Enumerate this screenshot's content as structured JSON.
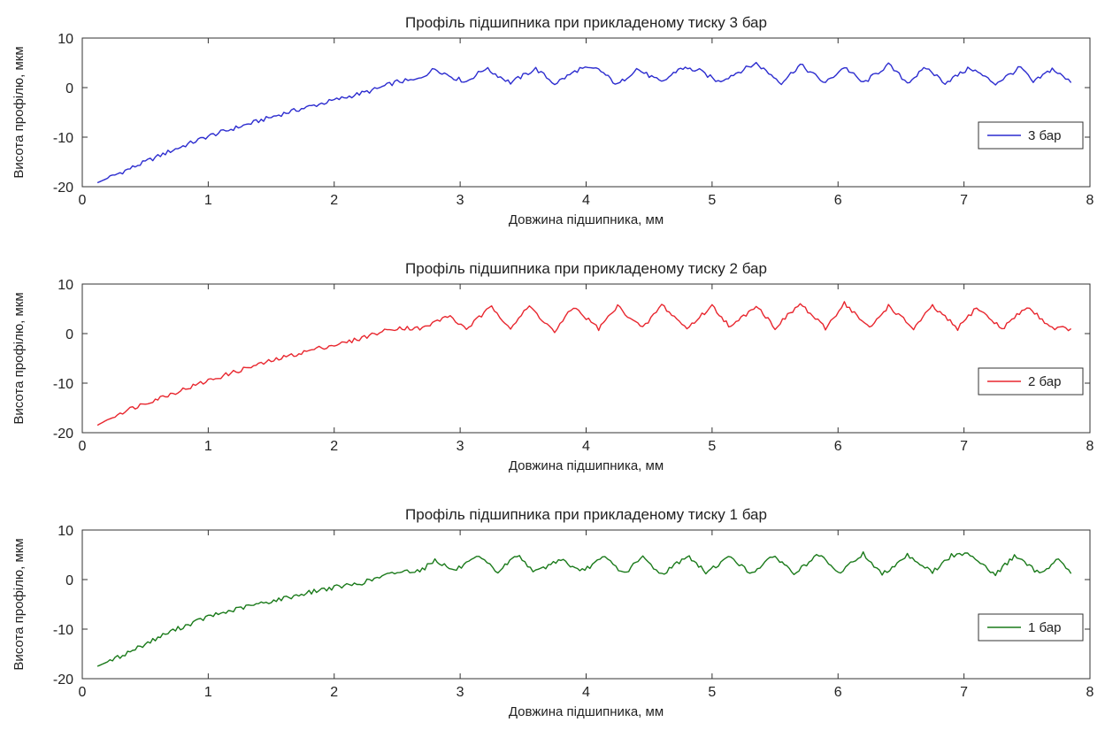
{
  "chart_data": [
    {
      "type": "line",
      "title": "Профіль підшипника при прикладеному тиску 3 бар",
      "xlabel": "Довжина підшипника, мм",
      "ylabel": "Висота профілю, мкм",
      "xlim": [
        0,
        8
      ],
      "ylim": [
        -20,
        10
      ],
      "xticks": [
        "0",
        "1",
        "2",
        "3",
        "4",
        "5",
        "6",
        "7",
        "8"
      ],
      "yticks": [
        "10",
        "0",
        "-10",
        "-20"
      ],
      "grid": false,
      "legend_position": "right",
      "series": [
        {
          "name": "3 бар",
          "color": "#2c2ccf",
          "x": [
            0.12,
            0.3,
            0.5,
            0.7,
            1.0,
            1.3,
            1.6,
            1.9,
            2.1,
            2.3,
            2.5,
            2.65,
            2.8,
            2.95,
            3.05,
            3.2,
            3.4,
            3.6,
            3.75,
            3.95,
            4.1,
            4.25,
            4.4,
            4.6,
            4.75,
            4.9,
            5.05,
            5.35,
            5.55,
            5.7,
            5.9,
            6.05,
            6.2,
            6.4,
            6.55,
            6.7,
            6.85,
            7.05,
            7.25,
            7.45,
            7.55,
            7.7,
            7.85
          ],
          "y": [
            -19.2,
            -17.2,
            -15.0,
            -12.8,
            -9.8,
            -7.5,
            -5.2,
            -3.2,
            -1.9,
            -0.6,
            1.2,
            1.5,
            3.8,
            2.0,
            1.2,
            3.9,
            1.0,
            3.8,
            0.8,
            3.8,
            3.7,
            0.5,
            3.8,
            1.0,
            4.0,
            3.4,
            1.2,
            4.9,
            1.0,
            4.6,
            0.9,
            4.2,
            0.9,
            4.6,
            1.0,
            4.0,
            1.0,
            4.0,
            0.8,
            4.1,
            1.0,
            3.8,
            1.0
          ]
        }
      ]
    },
    {
      "type": "line",
      "title": "Профіль підшипника при прикладеному тиску 2 бар",
      "xlabel": "Довжина підшипника, мм",
      "ylabel": "Висота профілю, мкм",
      "xlim": [
        0,
        8
      ],
      "ylim": [
        -20,
        10
      ],
      "xticks": [
        "0",
        "1",
        "2",
        "3",
        "4",
        "5",
        "6",
        "7",
        "8"
      ],
      "yticks": [
        "10",
        "0",
        "-10",
        "-20"
      ],
      "grid": false,
      "legend_position": "right",
      "series": [
        {
          "name": "2 бар",
          "color": "#e8262e",
          "x": [
            0.12,
            0.3,
            0.5,
            0.7,
            1.0,
            1.3,
            1.6,
            1.9,
            2.1,
            2.3,
            2.5,
            2.7,
            2.9,
            3.05,
            3.25,
            3.4,
            3.55,
            3.75,
            3.9,
            4.1,
            4.25,
            4.45,
            4.6,
            4.8,
            5.0,
            5.15,
            5.35,
            5.5,
            5.7,
            5.9,
            6.05,
            6.25,
            6.4,
            6.6,
            6.75,
            6.95,
            7.1,
            7.3,
            7.5,
            7.7,
            7.85
          ],
          "y": [
            -18.5,
            -16.0,
            -14.0,
            -12.2,
            -9.5,
            -7.0,
            -4.8,
            -2.8,
            -1.8,
            -0.2,
            1.2,
            1.0,
            3.6,
            1.0,
            5.4,
            1.2,
            5.5,
            0.3,
            5.4,
            1.0,
            5.5,
            1.0,
            5.8,
            1.0,
            5.6,
            1.2,
            5.8,
            1.2,
            6.0,
            1.0,
            6.2,
            1.0,
            5.6,
            1.0,
            5.5,
            1.0,
            5.3,
            1.0,
            5.4,
            1.2,
            1.0
          ]
        }
      ]
    },
    {
      "type": "line",
      "title": "Профіль підшипника при прикладеному тиску 1 бар",
      "xlabel": "Довжина підшипника, мм",
      "ylabel": "Висота профілю, мкм",
      "xlim": [
        0,
        8
      ],
      "ylim": [
        -20,
        10
      ],
      "xticks": [
        "0",
        "1",
        "2",
        "3",
        "4",
        "5",
        "6",
        "7",
        "8"
      ],
      "yticks": [
        "10",
        "0",
        "-10",
        "-20"
      ],
      "grid": false,
      "legend_position": "right",
      "series": [
        {
          "name": "1 бар",
          "color": "#1a7a1a",
          "x": [
            0.12,
            0.3,
            0.5,
            0.7,
            1.0,
            1.3,
            1.6,
            1.9,
            2.2,
            2.5,
            2.7,
            2.8,
            2.95,
            3.15,
            3.3,
            3.45,
            3.6,
            3.8,
            3.95,
            4.15,
            4.3,
            4.45,
            4.6,
            4.8,
            4.95,
            5.15,
            5.3,
            5.5,
            5.65,
            5.85,
            6.0,
            6.2,
            6.35,
            6.55,
            6.75,
            6.9,
            7.05,
            7.25,
            7.4,
            7.6,
            7.75,
            7.85
          ],
          "y": [
            -17.5,
            -15.5,
            -13.0,
            -10.5,
            -7.5,
            -5.5,
            -3.8,
            -2.0,
            -0.8,
            1.5,
            2.0,
            4.0,
            1.8,
            4.5,
            1.5,
            5.0,
            1.5,
            4.2,
            1.5,
            4.5,
            1.2,
            4.5,
            1.0,
            4.8,
            1.5,
            4.7,
            1.2,
            4.8,
            1.2,
            5.0,
            1.2,
            5.2,
            1.0,
            5.0,
            1.5,
            4.8,
            5.2,
            1.0,
            4.8,
            1.2,
            4.2,
            1.2
          ]
        }
      ]
    }
  ]
}
